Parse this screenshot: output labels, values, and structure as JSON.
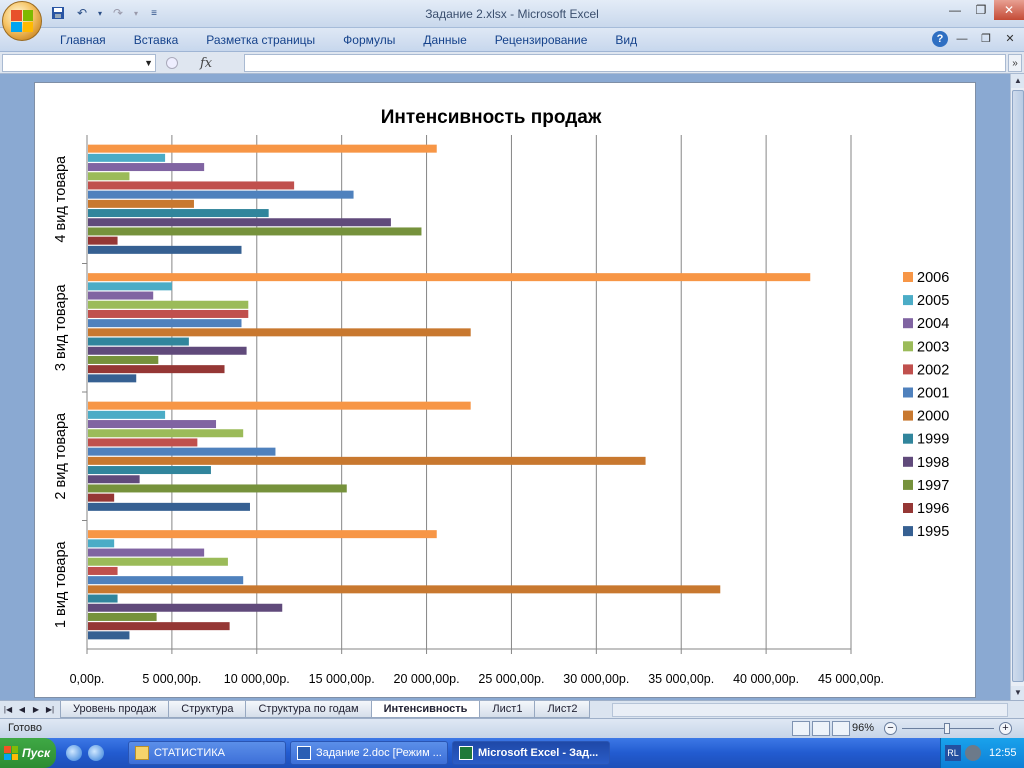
{
  "window": {
    "title": "Задание 2.xlsx - Microsoft Excel"
  },
  "quick_access": {
    "icons": [
      "save-icon",
      "undo-icon",
      "redo-icon",
      "customize-icon"
    ]
  },
  "ribbon": {
    "tabs": [
      "Главная",
      "Вставка",
      "Разметка страницы",
      "Формулы",
      "Данные",
      "Рецензирование",
      "Вид"
    ]
  },
  "formula_bar": {
    "name_box": "",
    "fx": "fx",
    "formula": ""
  },
  "sheet_tabs": [
    {
      "label": "Уровень продаж",
      "active": false
    },
    {
      "label": "Структура",
      "active": false
    },
    {
      "label": "Структура по годам",
      "active": false
    },
    {
      "label": "Интенсивность",
      "active": true
    },
    {
      "label": "Лист1",
      "active": false
    },
    {
      "label": "Лист2",
      "active": false
    }
  ],
  "status": {
    "text": "Готово",
    "zoom": "96%"
  },
  "taskbar": {
    "start": "Пуск",
    "tasks": [
      {
        "label": "СТАТИСТИКА",
        "active": false
      },
      {
        "label": "Задание 2.doc [Режим ...",
        "active": false
      },
      {
        "label": "Microsoft Excel - Зад...",
        "active": true
      }
    ],
    "tray_lang": "RL",
    "clock": "12:55"
  },
  "colors": {
    "2006": "#f79646",
    "2005": "#4bacc6",
    "2004": "#8064a2",
    "2003": "#9bbb59",
    "2002": "#c0504d",
    "2001": "#4f81bd",
    "2000": "#c8782f",
    "1999": "#31859c",
    "1998": "#604a7b",
    "1997": "#76923c",
    "1996": "#953735",
    "1995": "#366092"
  },
  "chart_data": {
    "type": "bar",
    "orientation": "horizontal",
    "title": "Интенсивность продаж",
    "categories": [
      "1 вид товара",
      "2 вид товара",
      "3 вид товара",
      "4 вид товара"
    ],
    "xlim": [
      0,
      45000
    ],
    "x_ticks": [
      "0,00р.",
      "5 000,00р.",
      "10 000,00р.",
      "15 000,00р.",
      "20 000,00р.",
      "25 000,00р.",
      "30 000,00р.",
      "35 000,00р.",
      "40 000,00р.",
      "45 000,00р."
    ],
    "grid": true,
    "legend": "right",
    "series": [
      {
        "name": "1995",
        "values": [
          2500,
          9600,
          2900,
          9100
        ]
      },
      {
        "name": "1996",
        "values": [
          8400,
          1600,
          8100,
          1800
        ]
      },
      {
        "name": "1997",
        "values": [
          4100,
          15300,
          4200,
          19700
        ]
      },
      {
        "name": "1998",
        "values": [
          11500,
          3100,
          9400,
          17900
        ]
      },
      {
        "name": "1999",
        "values": [
          1800,
          7300,
          6000,
          10700
        ]
      },
      {
        "name": "2000",
        "values": [
          37300,
          32900,
          22600,
          6300
        ]
      },
      {
        "name": "2001",
        "values": [
          9200,
          11100,
          9100,
          15700
        ]
      },
      {
        "name": "2002",
        "values": [
          1800,
          6500,
          9500,
          12200
        ]
      },
      {
        "name": "2003",
        "values": [
          8300,
          9200,
          9500,
          2500
        ]
      },
      {
        "name": "2004",
        "values": [
          6900,
          7600,
          3900,
          6900
        ]
      },
      {
        "name": "2005",
        "values": [
          1600,
          4600,
          5000,
          4600
        ]
      },
      {
        "name": "2006",
        "values": [
          20600,
          22600,
          42600,
          20600
        ]
      }
    ]
  }
}
